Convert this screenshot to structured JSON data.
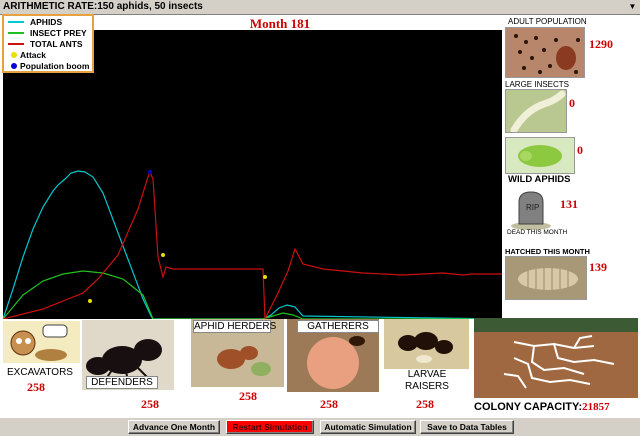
{
  "window": {
    "title": "ARITHMETIC RATE:150 aphids, 50 insects",
    "dropdown_icon": "triangle-down-icon"
  },
  "header": {
    "month": "Month 181"
  },
  "legend": {
    "items": [
      {
        "label": "APHIDS",
        "color": "#00c8d0",
        "kind": "line"
      },
      {
        "label": "INSECT PREY",
        "color": "#20c020",
        "kind": "line"
      },
      {
        "label": "TOTAL ANTS",
        "color": "#cc1010",
        "kind": "line"
      },
      {
        "label": "Attack",
        "color": "#e8e000",
        "kind": "dot"
      },
      {
        "label": "Population boom",
        "color": "#0000cc",
        "kind": "dot"
      }
    ]
  },
  "chart_data": {
    "type": "line",
    "title": "Month 181",
    "xlabel": "",
    "ylabel": "",
    "axes_visible": false,
    "background": "#000000",
    "series": [
      {
        "name": "APHIDS",
        "color": "#00c8d0",
        "x": [
          0,
          10,
          20,
          30,
          40,
          50,
          55,
          62,
          68,
          75,
          82,
          90,
          100,
          140,
          148,
          150,
          260,
          268,
          276,
          284,
          292,
          300,
          499
        ],
        "y": [
          0,
          30,
          62,
          90,
          112,
          128,
          134,
          140,
          146,
          148,
          147,
          142,
          126,
          20,
          3,
          0,
          0,
          4,
          11,
          14,
          12,
          3,
          0
        ]
      },
      {
        "name": "INSECT PREY",
        "color": "#20c020",
        "x": [
          0,
          20,
          40,
          60,
          80,
          100,
          120,
          140,
          150,
          260,
          270,
          280,
          290,
          300,
          499
        ],
        "y": [
          0,
          24,
          38,
          45,
          48,
          46,
          40,
          24,
          0,
          0,
          3,
          6,
          4,
          0,
          0
        ]
      },
      {
        "name": "TOTAL ANTS",
        "color": "#cc1010",
        "x": [
          0,
          40,
          80,
          95,
          115,
          135,
          145,
          147,
          150,
          155,
          160,
          163,
          170,
          200,
          230,
          260,
          262,
          275,
          285,
          292,
          300,
          320,
          360,
          400,
          440,
          460,
          470,
          499
        ],
        "y": [
          0,
          10,
          26,
          40,
          64,
          110,
          142,
          147,
          140,
          62,
          42,
          52,
          50,
          50,
          50,
          50,
          0,
          26,
          48,
          70,
          55,
          50,
          46,
          44,
          46,
          44,
          45,
          45
        ]
      }
    ],
    "markers": [
      {
        "type": "Attack",
        "color": "#e8e000",
        "x": 87,
        "y": 18
      },
      {
        "type": "Population boom",
        "color": "#0000cc",
        "x": 147,
        "y": 147
      },
      {
        "type": "Attack",
        "color": "#e8e000",
        "x": 160,
        "y": 64
      },
      {
        "type": "Attack",
        "color": "#e8e000",
        "x": 262,
        "y": 42
      }
    ],
    "xlim": [
      0,
      499
    ],
    "ylim": [
      0,
      289
    ]
  },
  "sidebar": {
    "adult_population": {
      "label": "ADULT POPULATION",
      "value": "1290",
      "image": "ant-colony-photo"
    },
    "large_insects": {
      "label": "LARGE INSECTS",
      "value": "0",
      "image": "caterpillar-photo"
    },
    "wild_aphids_image": {
      "value": "0",
      "image": "green-aphid-photo"
    },
    "wild_aphids": {
      "label": "WILD APHIDS",
      "value": "131",
      "image": "tombstone-icon"
    },
    "dead": {
      "label": "DEAD THIS MONTH"
    },
    "hatched": {
      "label": "HATCHED THIS MONTH",
      "value": "139",
      "image": "larva-photo"
    }
  },
  "castes": [
    {
      "name": "EXCAVATORS",
      "value": "258",
      "image": "excavator-cartoon"
    },
    {
      "name": "DEFENDERS",
      "value": "258",
      "image": "defender-ant-photo"
    },
    {
      "name": "APHID HERDERS",
      "value": "258",
      "image": "aphid-herder-photo"
    },
    {
      "name": "GATHERERS",
      "value": "258",
      "image": "gatherer-photo"
    },
    {
      "name": "LARVAE RAISERS",
      "value": "258",
      "image": "larvae-raiser-photo"
    }
  ],
  "colony": {
    "label": "COLONY CAPACITY:",
    "value": "21857",
    "image": "tunnel-map"
  },
  "buttons": {
    "advance": "Advance One Month",
    "restart": "Restart Simulation",
    "automatic": "Automatic Simulation",
    "save": "Save to Data Tables"
  }
}
